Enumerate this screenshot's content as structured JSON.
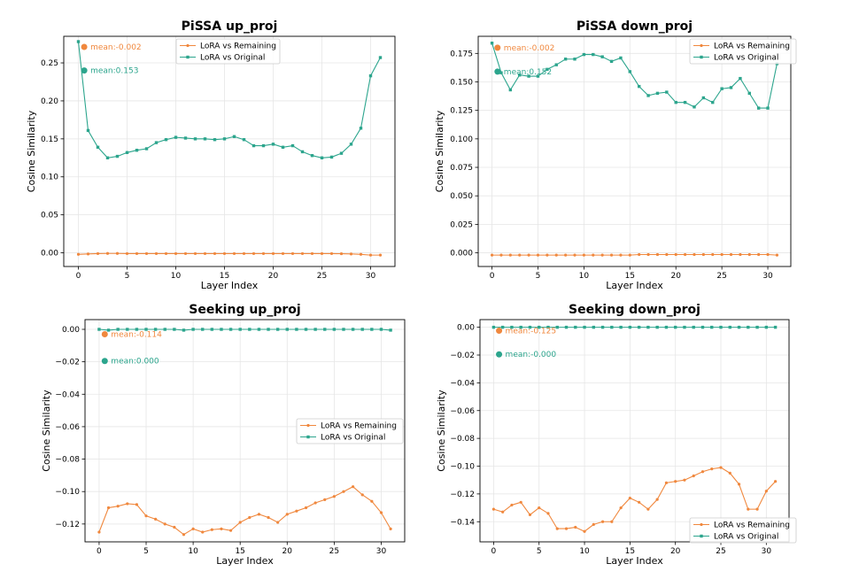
{
  "colors": {
    "remaining": "#f0883e",
    "original": "#2ca58d"
  },
  "chart_data": [
    {
      "type": "line",
      "title": "PiSSA up_proj",
      "xlabel": "Layer Index",
      "ylabel": "Cosine Similarity",
      "xlim": [
        -1.5,
        32.5
      ],
      "ylim": [
        -0.018,
        0.285
      ],
      "xticks": [
        0,
        5,
        10,
        15,
        20,
        25,
        30
      ],
      "yticks": [
        0.0,
        0.05,
        0.1,
        0.15,
        0.2,
        0.25
      ],
      "ytick_labels": [
        "0.00",
        "0.05",
        "0.10",
        "0.15",
        "0.20",
        "0.25"
      ],
      "grid": true,
      "legend": "top-center",
      "x": [
        0,
        1,
        2,
        3,
        4,
        5,
        6,
        7,
        8,
        9,
        10,
        11,
        12,
        13,
        14,
        15,
        16,
        17,
        18,
        19,
        20,
        21,
        22,
        23,
        24,
        25,
        26,
        27,
        28,
        29,
        30,
        31
      ],
      "series": [
        {
          "name": "LoRA vs Remaining",
          "color_key": "remaining",
          "values": [
            -0.002,
            -0.0015,
            -0.001,
            -0.0008,
            -0.0008,
            -0.001,
            -0.001,
            -0.001,
            -0.001,
            -0.001,
            -0.001,
            -0.001,
            -0.001,
            -0.001,
            -0.001,
            -0.001,
            -0.001,
            -0.001,
            -0.001,
            -0.001,
            -0.001,
            -0.001,
            -0.001,
            -0.001,
            -0.001,
            -0.001,
            -0.001,
            -0.0012,
            -0.0015,
            -0.002,
            -0.003,
            -0.003
          ]
        },
        {
          "name": "LoRA vs Original",
          "color_key": "original",
          "values": [
            0.278,
            0.161,
            0.139,
            0.125,
            0.127,
            0.132,
            0.135,
            0.137,
            0.145,
            0.149,
            0.152,
            0.151,
            0.15,
            0.15,
            0.149,
            0.15,
            0.153,
            0.149,
            0.141,
            0.141,
            0.143,
            0.139,
            0.141,
            0.133,
            0.128,
            0.125,
            0.126,
            0.131,
            0.143,
            0.164,
            0.233,
            0.257
          ]
        }
      ],
      "annotations": [
        {
          "text": "mean:-0.002",
          "x": 0.6,
          "y": 0.271,
          "color_key": "remaining"
        },
        {
          "text": "mean:0.153",
          "x": 0.6,
          "y": 0.24,
          "color_key": "original"
        }
      ]
    },
    {
      "type": "line",
      "title": "PiSSA down_proj",
      "xlabel": "Layer Index",
      "ylabel": "Cosine Similarity",
      "xlim": [
        -1.5,
        32.5
      ],
      "ylim": [
        -0.012,
        0.19
      ],
      "xticks": [
        0,
        5,
        10,
        15,
        20,
        25,
        30
      ],
      "yticks": [
        0.0,
        0.025,
        0.05,
        0.075,
        0.1,
        0.125,
        0.15,
        0.175
      ],
      "ytick_labels": [
        "0.000",
        "0.025",
        "0.050",
        "0.075",
        "0.100",
        "0.125",
        "0.150",
        "0.175"
      ],
      "grid": true,
      "legend": "top-right",
      "x": [
        0,
        1,
        2,
        3,
        4,
        5,
        6,
        7,
        8,
        9,
        10,
        11,
        12,
        13,
        14,
        15,
        16,
        17,
        18,
        19,
        20,
        21,
        22,
        23,
        24,
        25,
        26,
        27,
        28,
        29,
        30,
        31
      ],
      "series": [
        {
          "name": "LoRA vs Remaining",
          "color_key": "remaining",
          "values": [
            -0.002,
            -0.002,
            -0.002,
            -0.002,
            -0.002,
            -0.002,
            -0.002,
            -0.002,
            -0.002,
            -0.002,
            -0.002,
            -0.002,
            -0.002,
            -0.002,
            -0.002,
            -0.002,
            -0.0015,
            -0.0015,
            -0.0015,
            -0.0015,
            -0.0015,
            -0.0015,
            -0.0015,
            -0.0015,
            -0.0015,
            -0.0015,
            -0.0015,
            -0.0015,
            -0.0015,
            -0.0015,
            -0.0015,
            -0.002
          ]
        },
        {
          "name": "LoRA vs Original",
          "color_key": "original",
          "values": [
            0.184,
            0.158,
            0.143,
            0.156,
            0.155,
            0.155,
            0.161,
            0.165,
            0.17,
            0.17,
            0.174,
            0.174,
            0.172,
            0.168,
            0.171,
            0.159,
            0.146,
            0.138,
            0.14,
            0.141,
            0.132,
            0.132,
            0.128,
            0.136,
            0.132,
            0.144,
            0.145,
            0.153,
            0.14,
            0.127,
            0.127,
            0.166
          ]
        }
      ],
      "annotations": [
        {
          "text": "mean:-0.002",
          "x": 0.6,
          "y": 0.18,
          "color_key": "remaining"
        },
        {
          "text": "mean:0.152",
          "x": 0.6,
          "y": 0.159,
          "color_key": "original"
        }
      ]
    },
    {
      "type": "line",
      "title": "Seeking up_proj",
      "xlabel": "Layer Index",
      "ylabel": "Cosine Similarity",
      "xlim": [
        -1.5,
        32.5
      ],
      "ylim": [
        -0.131,
        0.006
      ],
      "xticks": [
        0,
        5,
        10,
        15,
        20,
        25,
        30
      ],
      "yticks": [
        0.0,
        -0.02,
        -0.04,
        -0.06,
        -0.08,
        -0.1,
        -0.12
      ],
      "ytick_labels": [
        "0.00",
        "−0.02",
        "−0.04",
        "−0.06",
        "−0.08",
        "−0.10",
        "−0.12"
      ],
      "grid": true,
      "legend": "center-right",
      "x": [
        0,
        1,
        2,
        3,
        4,
        5,
        6,
        7,
        8,
        9,
        10,
        11,
        12,
        13,
        14,
        15,
        16,
        17,
        18,
        19,
        20,
        21,
        22,
        23,
        24,
        25,
        26,
        27,
        28,
        29,
        30,
        31
      ],
      "series": [
        {
          "name": "LoRA vs Remaining",
          "color_key": "remaining",
          "values": [
            -0.125,
            -0.11,
            -0.109,
            -0.1075,
            -0.108,
            -0.115,
            -0.117,
            -0.12,
            -0.122,
            -0.1265,
            -0.123,
            -0.125,
            -0.1235,
            -0.123,
            -0.124,
            -0.119,
            -0.116,
            -0.114,
            -0.116,
            -0.119,
            -0.114,
            -0.112,
            -0.11,
            -0.107,
            -0.105,
            -0.103,
            -0.1,
            -0.097,
            -0.102,
            -0.106,
            -0.113,
            -0.123
          ]
        },
        {
          "name": "LoRA vs Original",
          "color_key": "original",
          "values": [
            0.0,
            -0.0005,
            0.0,
            0.0,
            0.0,
            0.0,
            0.0,
            0.0,
            0.0,
            -0.0005,
            0.0,
            0.0,
            0.0,
            0.0,
            0.0,
            0.0,
            0.0,
            0.0,
            0.0,
            0.0,
            0.0,
            0.0,
            0.0,
            0.0,
            0.0,
            0.0,
            0.0,
            0.0,
            0.0,
            0.0,
            0.0,
            -0.0005
          ]
        }
      ],
      "annotations": [
        {
          "text": "mean:-0.114",
          "x": 0.6,
          "y": -0.003,
          "color_key": "remaining"
        },
        {
          "text": "mean:0.000",
          "x": 0.6,
          "y": -0.0195,
          "color_key": "original"
        }
      ]
    },
    {
      "type": "line",
      "title": "Seeking down_proj",
      "xlabel": "Layer Index",
      "ylabel": "Cosine Similarity",
      "xlim": [
        -1.5,
        32.5
      ],
      "ylim": [
        -0.1545,
        0.0055
      ],
      "xticks": [
        0,
        5,
        10,
        15,
        20,
        25,
        30
      ],
      "yticks": [
        0.0,
        -0.02,
        -0.04,
        -0.06,
        -0.08,
        -0.1,
        -0.12,
        -0.14
      ],
      "ytick_labels": [
        "0.00",
        "−0.02",
        "−0.04",
        "−0.06",
        "−0.08",
        "−0.10",
        "−0.12",
        "−0.14"
      ],
      "grid": true,
      "legend": "bottom-right",
      "x": [
        0,
        1,
        2,
        3,
        4,
        5,
        6,
        7,
        8,
        9,
        10,
        11,
        12,
        13,
        14,
        15,
        16,
        17,
        18,
        19,
        20,
        21,
        22,
        23,
        24,
        25,
        26,
        27,
        28,
        29,
        30,
        31
      ],
      "series": [
        {
          "name": "LoRA vs Remaining",
          "color_key": "remaining",
          "values": [
            -0.131,
            -0.133,
            -0.128,
            -0.126,
            -0.135,
            -0.13,
            -0.134,
            -0.145,
            -0.145,
            -0.144,
            -0.147,
            -0.142,
            -0.14,
            -0.14,
            -0.13,
            -0.123,
            -0.126,
            -0.131,
            -0.124,
            -0.112,
            -0.111,
            -0.11,
            -0.107,
            -0.104,
            -0.102,
            -0.101,
            -0.105,
            -0.113,
            -0.131,
            -0.131,
            -0.118,
            -0.111
          ]
        },
        {
          "name": "LoRA vs Original",
          "color_key": "original",
          "values": [
            0.0,
            0.0,
            0.0,
            0.0,
            0.0,
            0.0,
            0.0,
            0.0,
            0.0,
            0.0,
            0.0,
            0.0,
            0.0,
            0.0,
            0.0,
            0.0,
            0.0,
            0.0,
            0.0,
            0.0,
            0.0,
            0.0,
            0.0,
            0.0,
            0.0,
            0.0,
            0.0,
            0.0,
            0.0,
            0.0,
            0.0,
            0.0
          ]
        }
      ],
      "annotations": [
        {
          "text": "mean:-0.125",
          "x": 0.6,
          "y": -0.0025,
          "color_key": "remaining"
        },
        {
          "text": "mean:-0.000",
          "x": 0.6,
          "y": -0.0195,
          "color_key": "original"
        }
      ]
    }
  ]
}
